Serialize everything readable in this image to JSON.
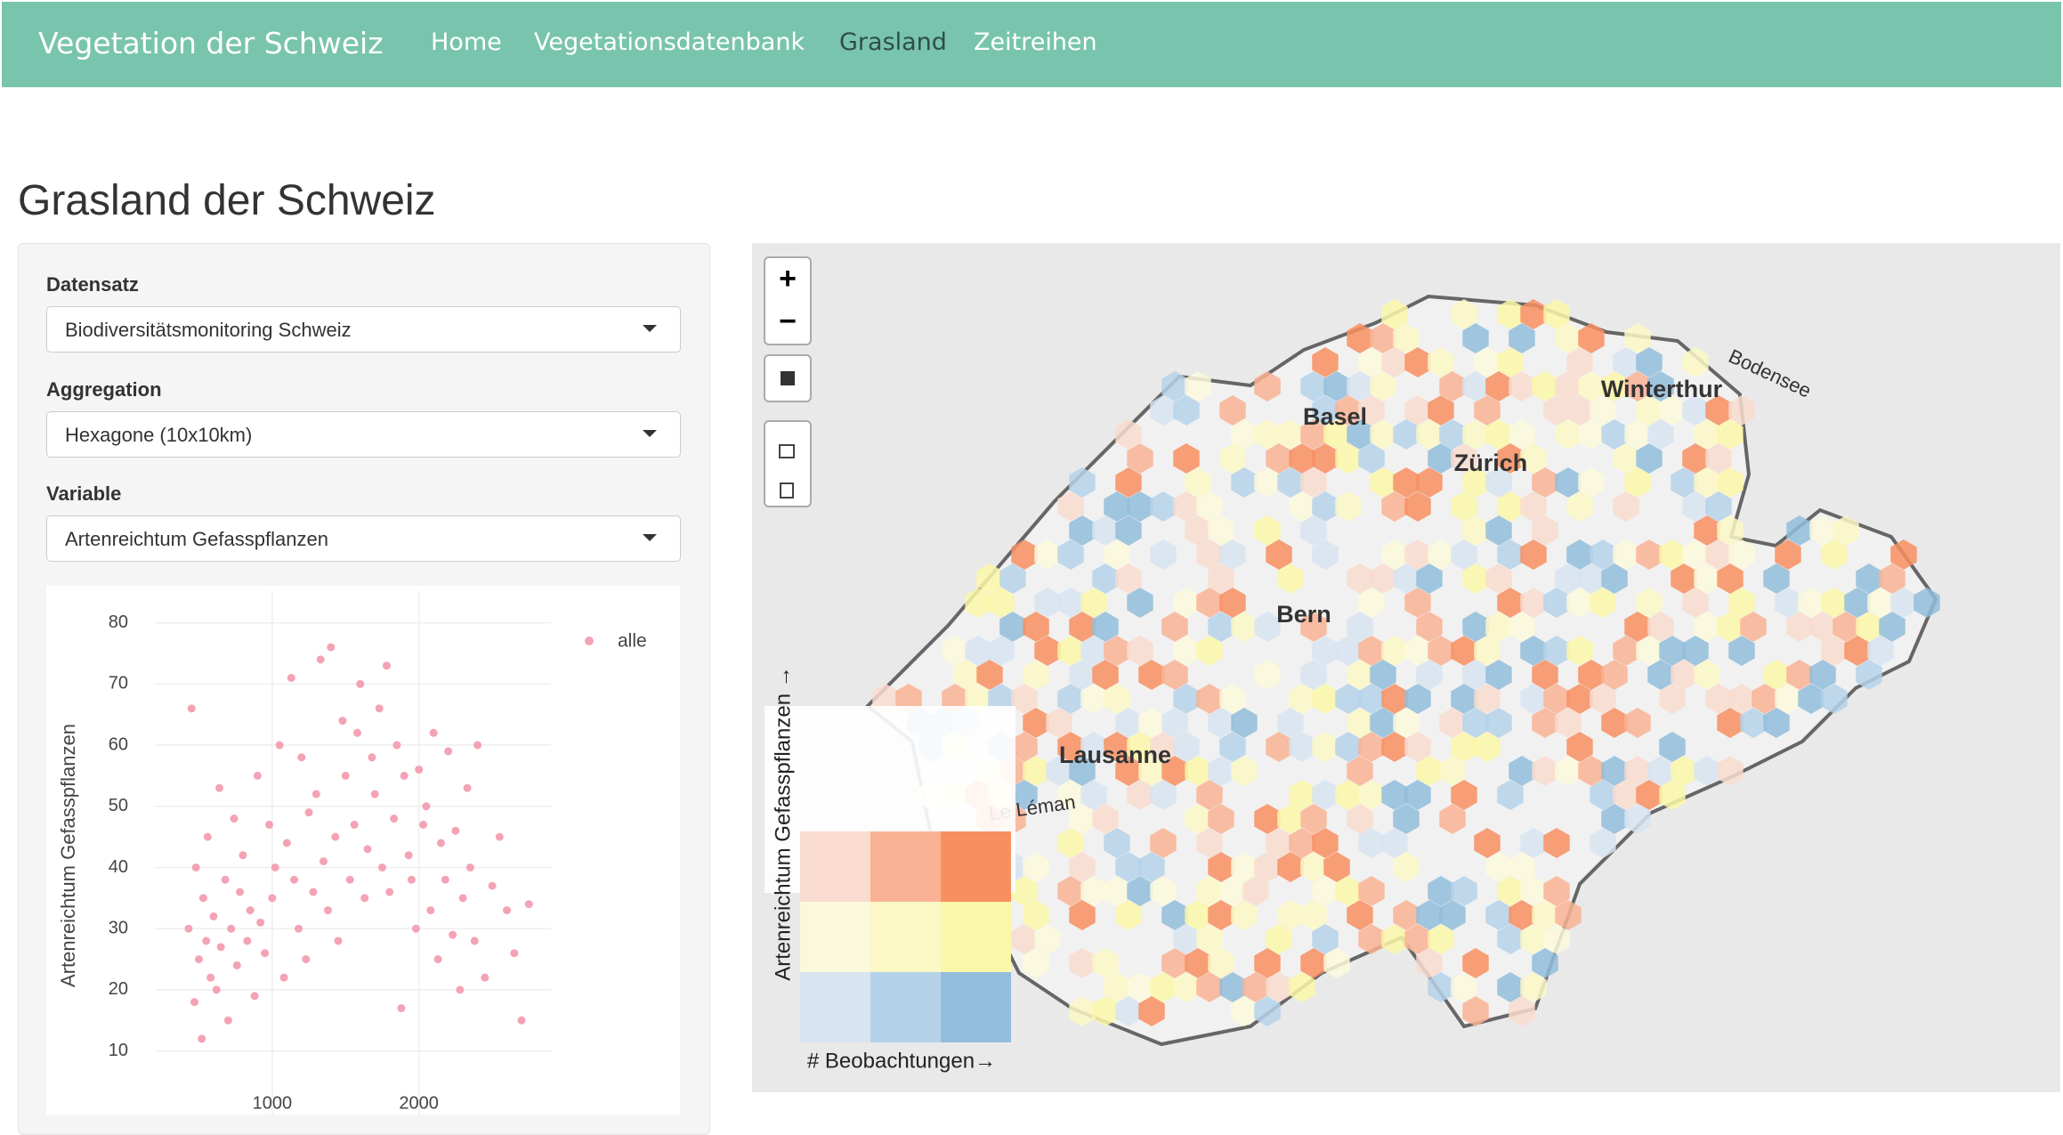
{
  "navbar": {
    "brand": "Vegetation der Schweiz",
    "links": [
      "Home",
      "Vegetationsdatenbank",
      "Grasland",
      "Zeitreihen"
    ],
    "active": 2
  },
  "page_title": "Grasland der Schweiz",
  "controls": [
    {
      "label": "Datensatz",
      "value": "Biodiversitätsmonitoring Schweiz"
    },
    {
      "label": "Aggregation",
      "value": "Hexagone (10x10km)"
    },
    {
      "label": "Variable",
      "value": "Artenreichtum Gefasspflanzen"
    }
  ],
  "chart_data": {
    "type": "scatter",
    "y_label": "Artenreichtum Gefasspflanzen",
    "x": [
      430,
      450,
      470,
      480,
      500,
      520,
      530,
      550,
      560,
      580,
      600,
      620,
      640,
      650,
      680,
      700,
      720,
      740,
      760,
      780,
      800,
      830,
      850,
      880,
      900,
      920,
      950,
      980,
      1000,
      1020,
      1050,
      1080,
      1100,
      1130,
      1150,
      1180,
      1200,
      1230,
      1250,
      1280,
      1300,
      1330,
      1350,
      1380,
      1400,
      1430,
      1450,
      1480,
      1500,
      1530,
      1560,
      1580,
      1600,
      1630,
      1650,
      1680,
      1700,
      1730,
      1750,
      1780,
      1800,
      1830,
      1850,
      1880,
      1900,
      1930,
      1950,
      1980,
      2000,
      2030,
      2050,
      2080,
      2100,
      2130,
      2150,
      2180,
      2200,
      2230,
      2250,
      2280,
      2300,
      2330,
      2350,
      2380,
      2400,
      2450,
      2500,
      2550,
      2600,
      2650,
      2700,
      2750
    ],
    "series": [
      {
        "name": "alle",
        "color": "#f4a3b4",
        "values": [
          30,
          66,
          18,
          40,
          25,
          12,
          35,
          28,
          45,
          22,
          32,
          20,
          53,
          27,
          38,
          15,
          30,
          48,
          24,
          36,
          42,
          28,
          33,
          19,
          55,
          31,
          26,
          47,
          35,
          40,
          60,
          22,
          44,
          71,
          38,
          30,
          58,
          25,
          49,
          36,
          52,
          74,
          41,
          33,
          76,
          45,
          28,
          64,
          55,
          38,
          47,
          62,
          70,
          35,
          43,
          58,
          52,
          66,
          40,
          73,
          36,
          48,
          60,
          17,
          55,
          42,
          38,
          30,
          56,
          47,
          50,
          33,
          62,
          25,
          44,
          38,
          59,
          29,
          46,
          20,
          35,
          53,
          40,
          28,
          60,
          22,
          37,
          45,
          33,
          26,
          15,
          34
        ]
      }
    ],
    "xlim": [
      200,
      2900
    ],
    "ylim": [
      5,
      83
    ],
    "xticks": [
      1000,
      2000
    ],
    "yticks": [
      10,
      20,
      30,
      40,
      50,
      60,
      70,
      80
    ],
    "grid": true
  },
  "map": {
    "zoom_in": "+",
    "zoom_out": "−",
    "places": [
      "Basel",
      "Zürich",
      "Winterthur",
      "Bern",
      "Lausanne",
      "Le Léman",
      "Bodensee"
    ],
    "legend": {
      "y_label": "Artenreichtum Gefasspflanzen →",
      "x_label": "# Beobachtungen→",
      "colors": [
        [
          "#f9dccf",
          "#f9b394",
          "#f88f61"
        ],
        [
          "#fbf9dc",
          "#fbf8c6",
          "#fbf7a8"
        ],
        [
          "#d7e4f1",
          "#b5d2ea",
          "#92bddb"
        ]
      ]
    }
  }
}
